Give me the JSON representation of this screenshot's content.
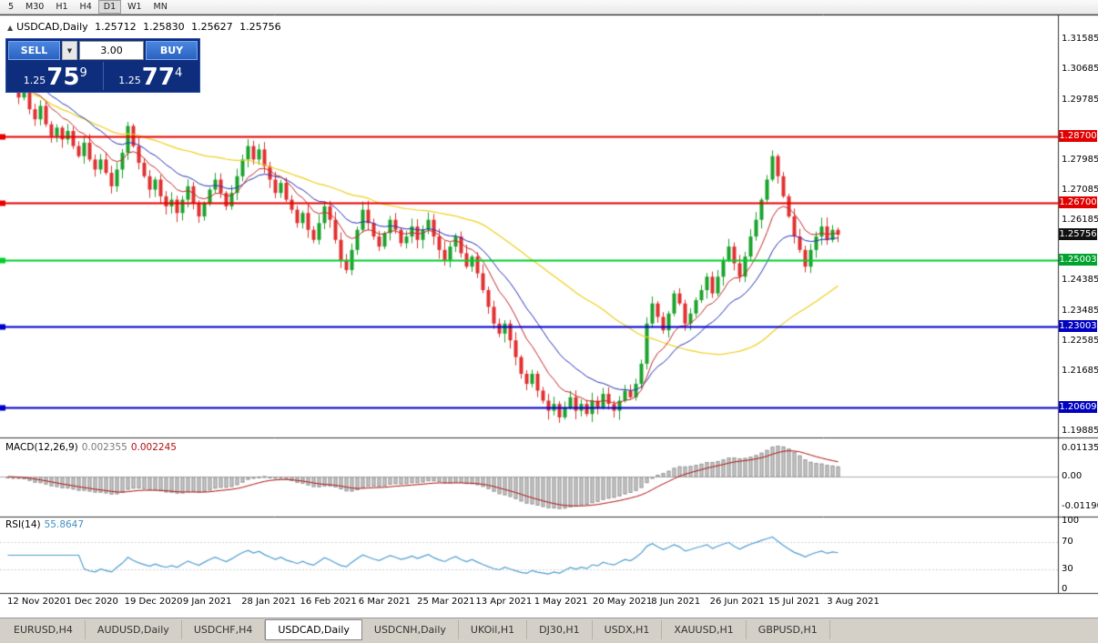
{
  "toolbar": {
    "timeframes": [
      "5",
      "M30",
      "H1",
      "H4",
      "D1",
      "W1",
      "MN"
    ],
    "active": "D1"
  },
  "chart": {
    "symbol_title": "USDCAD,Daily",
    "ohlc": {
      "open": "1.25712",
      "high": "1.25830",
      "low": "1.25627",
      "close": "1.25756"
    },
    "price_scale": {
      "top": 1.323,
      "bottom": 1.197
    },
    "axis_ticks": [
      {
        "label": "1.31585",
        "price": 1.31585
      },
      {
        "label": "1.30685",
        "price": 1.30685
      },
      {
        "label": "1.29785",
        "price": 1.29785
      },
      {
        "label": "1.27985",
        "price": 1.27985
      },
      {
        "label": "1.27085",
        "price": 1.27085
      },
      {
        "label": "1.26185",
        "price": 1.26185
      },
      {
        "label": "1.24385",
        "price": 1.24385
      },
      {
        "label": "1.23485",
        "price": 1.23485
      },
      {
        "label": "1.22585",
        "price": 1.22585
      },
      {
        "label": "1.21685",
        "price": 1.21685
      },
      {
        "label": "1.19885",
        "price": 1.19885
      }
    ],
    "badges": [
      {
        "label": "1.28700",
        "price": 1.287,
        "color": "#E00000"
      },
      {
        "label": "1.26700",
        "price": 1.267,
        "color": "#E00000"
      },
      {
        "label": "1.25756",
        "price": 1.25756,
        "color": "#111111"
      },
      {
        "label": "1.25003",
        "price": 1.25003,
        "color": "#00A32E"
      },
      {
        "label": "1.23003",
        "price": 1.23003,
        "color": "#0000C0"
      },
      {
        "label": "1.20609",
        "price": 1.20609,
        "color": "#0000C0"
      }
    ],
    "hlines": [
      {
        "price": 1.287,
        "color": "#E60000"
      },
      {
        "price": 1.267,
        "color": "#E60000"
      },
      {
        "price": 1.25003,
        "color": "#00D02A"
      },
      {
        "price": 1.23003,
        "color": "#0000CC"
      },
      {
        "price": 1.20609,
        "color": "#0000CC"
      }
    ],
    "dates": [
      "12 Nov 2020",
      "1 Dec 2020",
      "19 Dec 2020",
      "9 Jan 2021",
      "28 Jan 2021",
      "16 Feb 2021",
      "6 Mar 2021",
      "25 Mar 2021",
      "13 Apr 2021",
      "1 May 2021",
      "20 May 2021",
      "8 Jun 2021",
      "26 Jun 2021",
      "15 Jul 2021",
      "3 Aug 2021"
    ]
  },
  "trade_panel": {
    "sell_label": "SELL",
    "buy_label": "BUY",
    "volume": "3.00",
    "sell_quote": {
      "prefix": "1.25",
      "big": "75",
      "sup": "9"
    },
    "buy_quote": {
      "prefix": "1.25",
      "big": "77",
      "sup": "4"
    }
  },
  "macd": {
    "name": "MACD(12,26,9)",
    "value_main": "0.002355",
    "value_signal": "0.002245",
    "axis_top": "0.01135",
    "axis_zero": "0.00",
    "axis_bottom": "-0.01190"
  },
  "rsi": {
    "name": "RSI(14)",
    "value": "55.8647",
    "axis": [
      {
        "label": "100",
        "value": 100
      },
      {
        "label": "70",
        "value": 70
      },
      {
        "label": "30",
        "value": 30
      },
      {
        "label": "0",
        "value": 0
      }
    ]
  },
  "tabs": {
    "items": [
      "EURUSD,H4",
      "AUDUSD,Daily",
      "USDCHF,H4",
      "USDCAD,Daily",
      "USDCNH,Daily",
      "UKOil,H1",
      "DJ30,H1",
      "USDX,H1",
      "XAUUSD,H1",
      "GBPUSD,H1"
    ],
    "active": "USDCAD,Daily"
  },
  "chart_data": {
    "type": "candlestick",
    "symbol": "USDCAD",
    "timeframe": "Daily",
    "title": "USDCAD,Daily",
    "x_range": [
      "12 Nov 2020",
      "10 Aug 2021"
    ],
    "price_range": [
      1.197,
      1.323
    ],
    "levels": [
      1.287,
      1.267,
      1.25003,
      1.23003,
      1.20609
    ],
    "current_bid": 1.25759,
    "current_ask": 1.25774,
    "last_close": 1.25756,
    "colors": {
      "up": "#1CA32C",
      "down": "#E03131",
      "ma_fast": "#C62828",
      "ma_mid": "#2430B8",
      "ma_slow": "#F0D020",
      "macd_hist": "#C8C8C8",
      "macd_signal": "#B01010",
      "rsi": "#4F9ED2"
    },
    "indicators": {
      "ma_fast": {
        "type": "EMA",
        "period": 9
      },
      "ma_mid": {
        "type": "EMA",
        "period": 18
      },
      "ma_slow": {
        "type": "SMA",
        "period": 45
      },
      "macd": [
        12,
        26,
        9
      ],
      "rsi": [
        14
      ]
    },
    "closes": [
      1.306,
      1.302,
      1.2985,
      1.301,
      1.295,
      1.292,
      1.296,
      1.2905,
      1.287,
      1.2895,
      1.286,
      1.2885,
      1.284,
      1.281,
      1.285,
      1.28,
      1.277,
      1.28,
      1.276,
      1.272,
      1.277,
      1.282,
      1.29,
      1.284,
      1.279,
      1.275,
      1.271,
      1.274,
      1.269,
      1.266,
      1.268,
      1.264,
      1.268,
      1.272,
      1.267,
      1.263,
      1.267,
      1.271,
      1.274,
      1.27,
      1.266,
      1.27,
      1.275,
      1.28,
      1.284,
      1.28,
      1.283,
      1.278,
      1.274,
      1.27,
      1.273,
      1.268,
      1.265,
      1.261,
      1.264,
      1.259,
      1.256,
      1.261,
      1.266,
      1.262,
      1.256,
      1.25,
      1.247,
      1.253,
      1.259,
      1.265,
      1.261,
      1.257,
      1.254,
      1.258,
      1.262,
      1.259,
      1.255,
      1.257,
      1.26,
      1.256,
      1.259,
      1.262,
      1.257,
      1.253,
      1.25,
      1.254,
      1.257,
      1.252,
      1.248,
      1.251,
      1.246,
      1.241,
      1.236,
      1.231,
      1.228,
      1.231,
      1.226,
      1.221,
      1.216,
      1.213,
      1.216,
      1.211,
      1.208,
      1.205,
      1.207,
      1.203,
      1.206,
      1.209,
      1.205,
      1.207,
      1.204,
      1.208,
      1.206,
      1.21,
      1.207,
      1.205,
      1.208,
      1.211,
      1.209,
      1.213,
      1.219,
      1.231,
      1.237,
      1.233,
      1.229,
      1.234,
      1.24,
      1.237,
      1.231,
      1.234,
      1.238,
      1.241,
      1.245,
      1.24,
      1.245,
      1.25,
      1.254,
      1.249,
      1.245,
      1.251,
      1.257,
      1.262,
      1.268,
      1.274,
      1.281,
      1.275,
      1.269,
      1.263,
      1.257,
      1.253,
      1.248,
      1.253,
      1.257,
      1.26,
      1.256,
      1.259,
      1.25756
    ]
  }
}
